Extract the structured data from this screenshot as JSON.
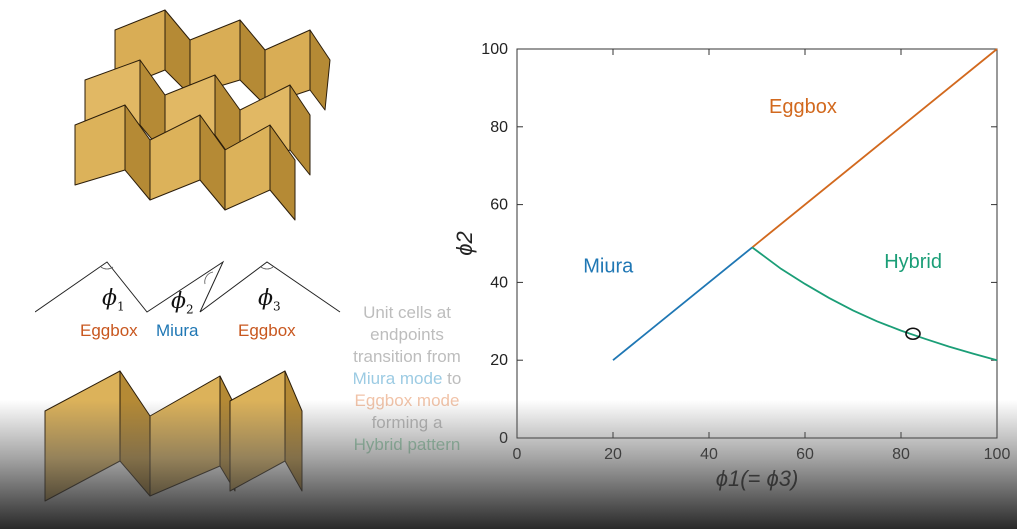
{
  "colors": {
    "miura": "#1f77b4",
    "eggbox": "#d2691e",
    "hybrid": "#1b9e77",
    "tile": "#dcb25a",
    "tile_dark": "#b8923f",
    "caption_gray": "#bdbdbd",
    "caption_blue": "#9ccbe3",
    "caption_orange": "#f1c3a8",
    "caption_green": "#9fd3b5"
  },
  "crease_diagram": {
    "angles": [
      "ϕ1",
      "ϕ2",
      "ϕ3"
    ],
    "angle_base": "ϕ",
    "angle_subs": [
      "1",
      "2",
      "3"
    ],
    "modes": [
      "Eggbox",
      "Miura",
      "Eggbox"
    ]
  },
  "caption": {
    "line1": "Unit cells at",
    "line2": "endpoints",
    "line3": "transition from",
    "line4": "Miura mode",
    "line4_suffix": " to",
    "line5": "Eggbox mode",
    "line6": "forming a",
    "line7": "Hybrid pattern"
  },
  "chart_data": {
    "type": "line",
    "xlabel": "ϕ1(= ϕ3)",
    "ylabel": "ϕ2",
    "xlim": [
      0,
      100
    ],
    "ylim": [
      0,
      100
    ],
    "xticks": [
      0,
      20,
      40,
      60,
      80,
      100
    ],
    "yticks": [
      0,
      20,
      40,
      60,
      80,
      100
    ],
    "grid": false,
    "annotations": [
      "Eggbox",
      "Miura",
      "Hybrid"
    ],
    "series": [
      {
        "name": "Miura",
        "color": "#1f77b4",
        "x": [
          20,
          49
        ],
        "y": [
          20,
          49
        ]
      },
      {
        "name": "Eggbox",
        "color": "#d2691e",
        "x": [
          49,
          100
        ],
        "y": [
          49,
          100
        ]
      },
      {
        "name": "Hybrid",
        "color": "#1b9e77",
        "x": [
          49,
          55,
          60,
          65,
          70,
          75,
          80,
          85,
          90,
          95,
          100
        ],
        "y": [
          49,
          43.5,
          39.6,
          36.0,
          32.8,
          30.0,
          27.6,
          25.5,
          23.5,
          21.7,
          20
        ]
      }
    ],
    "marker": {
      "x": 82.5,
      "y": 26.8
    }
  }
}
